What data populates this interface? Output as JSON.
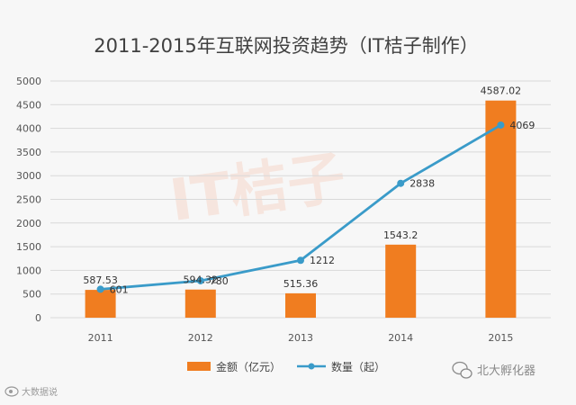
{
  "chart_data": {
    "type": "bar",
    "title": "2011-2015年互联网投资趋势（IT桔子制作）",
    "categories": [
      "2011",
      "2012",
      "2013",
      "2014",
      "2015"
    ],
    "series": [
      {
        "name": "金额（亿元）",
        "type": "bar",
        "color": "#f07d20",
        "values": [
          587.53,
          594.32,
          515.36,
          1543.2,
          4587.02
        ],
        "labels": [
          "587.53",
          "594.32",
          "515.36",
          "1543.2",
          "4587.02"
        ]
      },
      {
        "name": "数量（起）",
        "type": "line",
        "color": "#3a9bc9",
        "values": [
          601,
          780,
          1212,
          2838,
          4069
        ],
        "labels": [
          "601",
          "780",
          "1212",
          "2838",
          "4069"
        ]
      }
    ],
    "ylim": [
      0,
      5000
    ],
    "yticks": [
      "0",
      "500",
      "1000",
      "1500",
      "2000",
      "2500",
      "3000",
      "3500",
      "4000",
      "4500",
      "5000"
    ],
    "grid": true,
    "legend_position": "bottom"
  },
  "watermarks": {
    "bottom_right": "北大孵化器",
    "bottom_left": "大数据说"
  },
  "icons": {
    "bottom_right": "wechat-icon",
    "bottom_left": "weibo-icon"
  }
}
